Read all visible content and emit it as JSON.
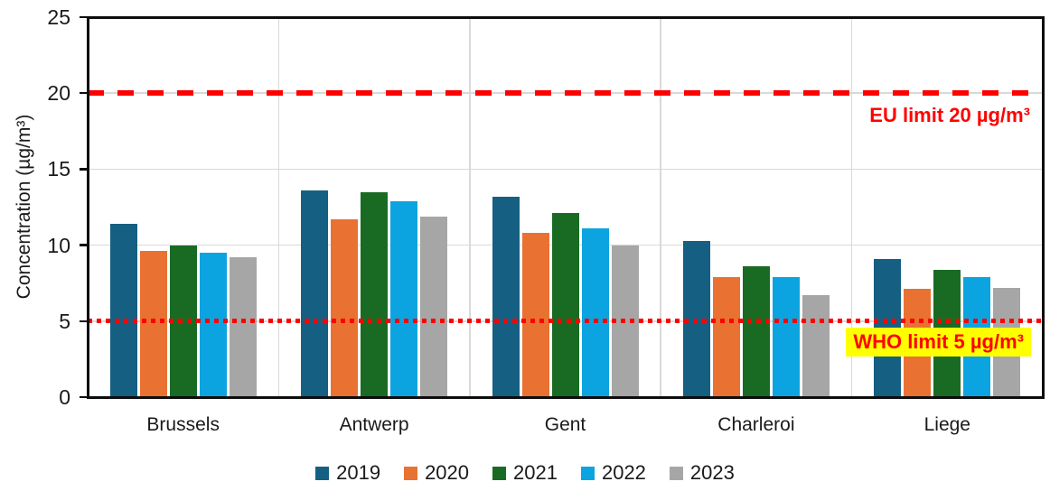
{
  "chart_data": {
    "type": "bar",
    "title": "",
    "ylabel": "Concentration (µg/m³)",
    "xlabel": "",
    "categories": [
      "Brussels",
      "Antwerp",
      "Gent",
      "Charleroi",
      "Liege"
    ],
    "series": [
      {
        "name": "2019",
        "color": "#156082",
        "values": [
          11.4,
          13.6,
          13.2,
          10.3,
          9.1
        ]
      },
      {
        "name": "2020",
        "color": "#E97132",
        "values": [
          9.6,
          11.7,
          10.8,
          7.9,
          7.1
        ]
      },
      {
        "name": "2021",
        "color": "#196B24",
        "values": [
          10.0,
          13.5,
          12.1,
          8.6,
          8.4
        ]
      },
      {
        "name": "2022",
        "color": "#0CA4E0",
        "values": [
          9.5,
          12.9,
          11.1,
          7.9,
          7.9
        ]
      },
      {
        "name": "2023",
        "color": "#A6A6A6",
        "values": [
          9.2,
          11.9,
          10.0,
          6.7,
          7.2
        ]
      }
    ],
    "ylim": [
      0,
      25
    ],
    "yticks": [
      0,
      5,
      10,
      15,
      20,
      25
    ],
    "grid": true,
    "legend_position": "bottom",
    "reference_lines": [
      {
        "value": 20,
        "style": "dashed",
        "color": "#FF0000",
        "label": "EU limit 20 µg/m³",
        "label_background": "none"
      },
      {
        "value": 5,
        "style": "dotted",
        "color": "#FF0000",
        "label": "WHO limit 5 µg/m³",
        "label_background": "#FFFF00"
      }
    ]
  },
  "style_colors": {
    "axis": "#0D0D0D",
    "gridline": "#D9D9D9",
    "text": "#1A1A1A",
    "background": "#FFFFFF"
  }
}
